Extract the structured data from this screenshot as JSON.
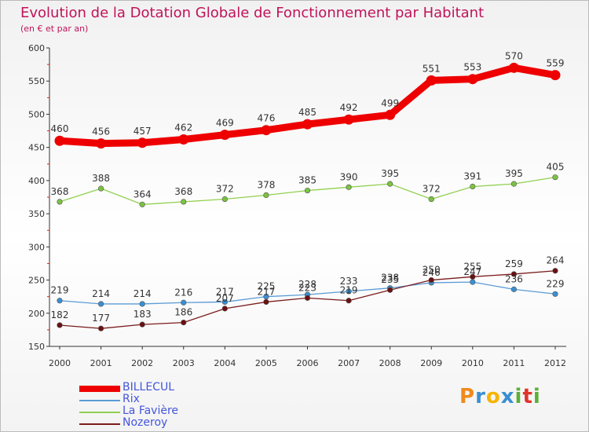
{
  "header": {
    "title": "Evolution de la Dotation Globale de Fonctionnement par Habitant",
    "subtitle": "(en € et par an)"
  },
  "brand": {
    "logo_text": "Proxiti"
  },
  "colors": {
    "title": "#c0135a",
    "legend_text": "#4455dd",
    "axis_text": "#333333"
  },
  "chart_data": {
    "type": "line",
    "title": "Evolution de la Dotation Globale de Fonctionnement par Habitant",
    "subtitle": "(en € et par an)",
    "xlabel": "",
    "ylabel": "",
    "x": [
      "2000",
      "2001",
      "2002",
      "2003",
      "2004",
      "2005",
      "2006",
      "2007",
      "2008",
      "2009",
      "2010",
      "2011",
      "2012"
    ],
    "ylim": [
      150,
      600
    ],
    "yticks": [
      150,
      200,
      250,
      300,
      350,
      400,
      450,
      500,
      550,
      600
    ],
    "grid": false,
    "legend_position": "bottom-left",
    "series": [
      {
        "name": "BILLECUL",
        "color": "#ee0000",
        "values": [
          460,
          456,
          457,
          462,
          469,
          476,
          485,
          492,
          499,
          551,
          553,
          570,
          559
        ]
      },
      {
        "name": "Rix",
        "color": "#5b9bd5",
        "values": [
          219,
          214,
          214,
          216,
          217,
          225,
          228,
          233,
          238,
          246,
          247,
          236,
          229
        ]
      },
      {
        "name": "La Favière",
        "color": "#92d050",
        "values": [
          368,
          388,
          364,
          368,
          372,
          378,
          385,
          390,
          395,
          372,
          391,
          395,
          405
        ]
      },
      {
        "name": "Nozeroy",
        "color": "#7b1c1c",
        "values": [
          182,
          177,
          183,
          186,
          207,
          217,
          223,
          219,
          235,
          250,
          255,
          259,
          264
        ]
      }
    ]
  }
}
